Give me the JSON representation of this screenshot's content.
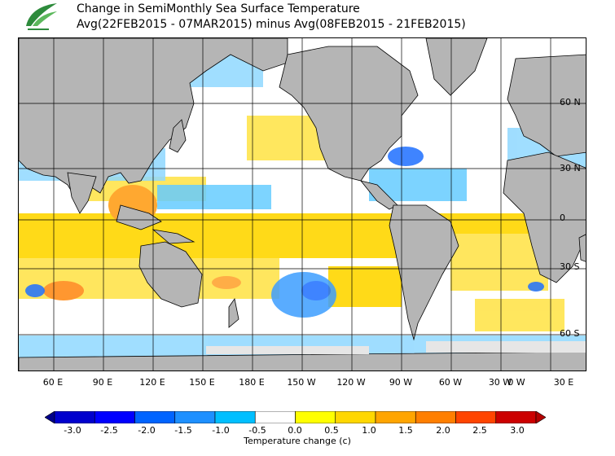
{
  "header": {
    "title": "Change in SemiMonthly Sea Surface Temperature",
    "subtitle": "Avg(22FEB2015 - 07MAR2015) minus Avg(08FEB2015 - 21FEB2015)"
  },
  "map": {
    "longitude_labels": [
      "60 E",
      "90 E",
      "120 E",
      "150 E",
      "180 E",
      "150 W",
      "120 W",
      "90 W",
      "60 W",
      "30 W",
      "0 W",
      "30 E"
    ],
    "latitude_labels": [
      "60 N",
      "30 N",
      "0",
      "30 S",
      "60 S"
    ],
    "colors": {
      "land": "#b5b5b5",
      "sea_ice": "#e6e6e6",
      "ocean_neutral": "#ffffff"
    }
  },
  "colorbar": {
    "title": "Temperature change  (c)",
    "labels": [
      "-3.0",
      "-2.5",
      "-2.0",
      "-1.5",
      "-1.0",
      "-0.5",
      "0.0",
      "0.5",
      "1.0",
      "1.5",
      "2.0",
      "2.5",
      "3.0"
    ],
    "colors": [
      "#00008b",
      "#0000cd",
      "#0000ff",
      "#0064ff",
      "#1e90ff",
      "#00bfff",
      "#ffffff",
      "#ffff00",
      "#ffd700",
      "#ffa500",
      "#ff7f00",
      "#ff4500",
      "#cc0000",
      "#b30000"
    ]
  }
}
